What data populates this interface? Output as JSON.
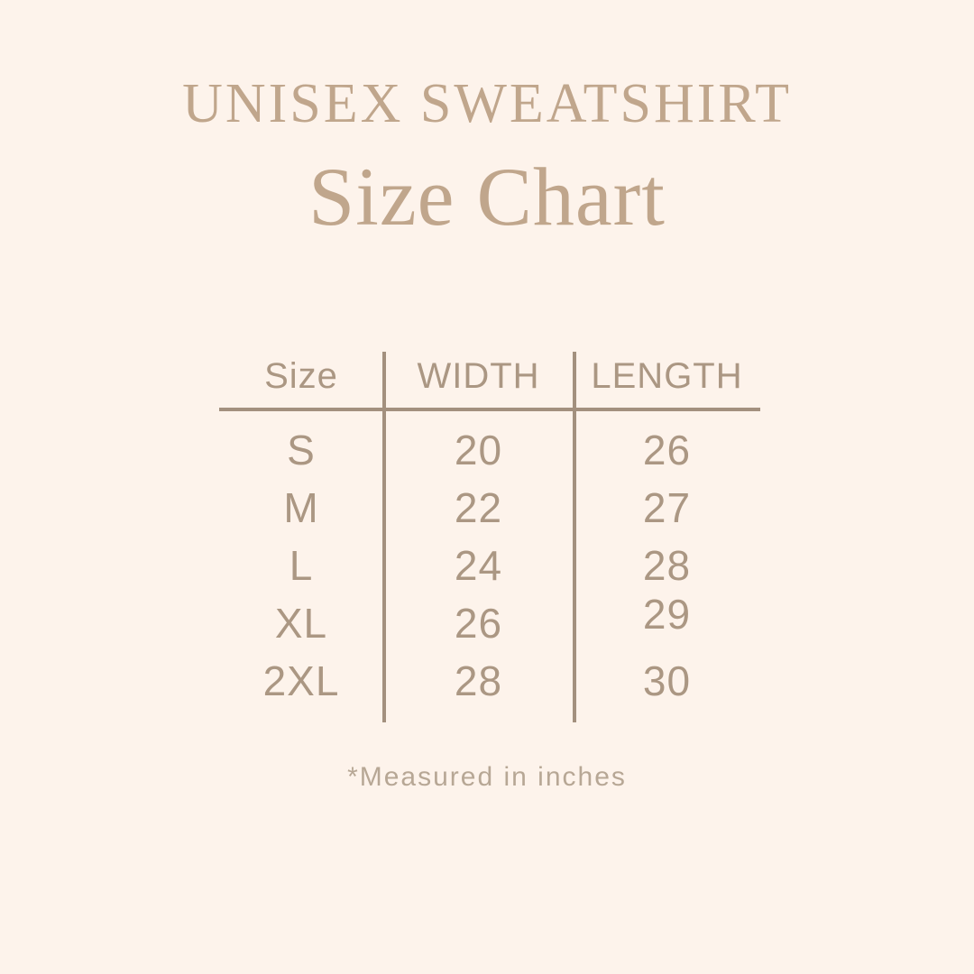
{
  "page": {
    "background_color": "#fdf3eb",
    "title_color": "#c0a68c",
    "text_color": "#ab9783",
    "line_color": "#a3907e"
  },
  "chart_data": {
    "type": "table",
    "subtitle": "UNISEX SWEATSHIRT",
    "title": "Size Chart",
    "columns": [
      "Size",
      "WIDTH",
      "LENGTH"
    ],
    "rows": [
      [
        "S",
        "20",
        "26"
      ],
      [
        "M",
        "22",
        "27"
      ],
      [
        "L",
        "24",
        "28"
      ],
      [
        "XL",
        "26",
        "29"
      ],
      [
        "2XL",
        "28",
        "30"
      ]
    ],
    "note": "*Measured in inches"
  }
}
